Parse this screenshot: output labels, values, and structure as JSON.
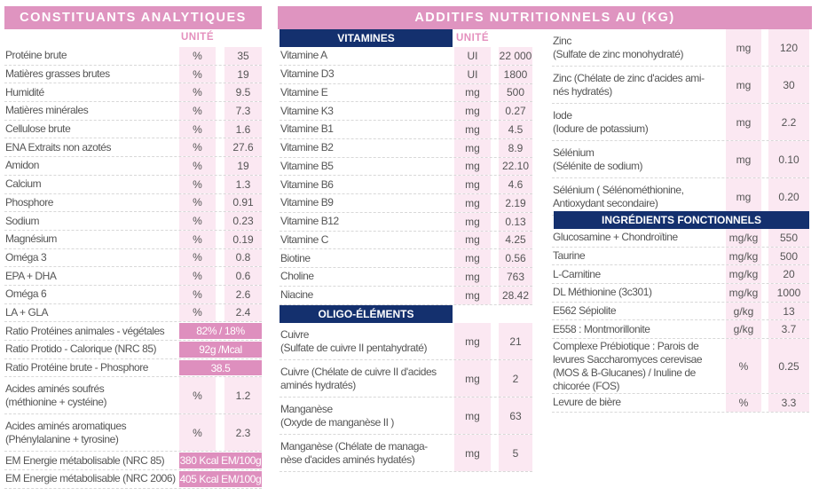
{
  "colors": {
    "pink_header": "#df94c0",
    "navy_header": "#14306e",
    "column_tint": "#fbe8f2",
    "highlight": "#de8fbe",
    "unit_label": "#e48fbd"
  },
  "left": {
    "title": "CONSTITUANTS ANALYTIQUES",
    "unit_header": "UNITÉ",
    "rows": [
      {
        "label": "Protéine brute",
        "unit": "%",
        "value": "35"
      },
      {
        "label": "Matières grasses brutes",
        "unit": "%",
        "value": "19"
      },
      {
        "label": "Humidité",
        "unit": "%",
        "value": "9.5"
      },
      {
        "label": "Matières minérales",
        "unit": "%",
        "value": "7.3"
      },
      {
        "label": "Cellulose brute",
        "unit": "%",
        "value": "1.6"
      },
      {
        "label": "ENA Extraits non azotés",
        "unit": "%",
        "value": "27.6"
      },
      {
        "label": "Amidon",
        "unit": "%",
        "value": "19"
      },
      {
        "label": "Calcium",
        "unit": "%",
        "value": "1.3"
      },
      {
        "label": "Phosphore",
        "unit": "%",
        "value": "0.91"
      },
      {
        "label": "Sodium",
        "unit": "%",
        "value": "0.23"
      },
      {
        "label": "Magnésium",
        "unit": "%",
        "value": "0.19"
      },
      {
        "label": "Oméga 3",
        "unit": "%",
        "value": "0.8"
      },
      {
        "label": "EPA + DHA",
        "unit": "%",
        "value": "0.6"
      },
      {
        "label": "Oméga 6",
        "unit": "%",
        "value": "2.6"
      },
      {
        "label": "LA + GLA",
        "unit": "%",
        "value": "2.4"
      },
      {
        "label": "Ratio Protéines animales - végétales",
        "merged": "82% / 18%"
      },
      {
        "label": "Ratio Protido - Calorique (NRC 85)",
        "merged": "92g /Mcal"
      },
      {
        "label": "Ratio Protéine brute - Phosphore",
        "merged": "38.5"
      },
      {
        "label": "Acides aminés soufrés\n(méthionine + cystéine)",
        "unit": "%",
        "value": "1.2"
      },
      {
        "label": "Acides aminés aromatiques\n(Phénylalanine + tyrosine)",
        "unit": "%",
        "value": "2.3"
      },
      {
        "label": "EM Energie métabolisable  (NRC 85)",
        "merged": "380 Kcal EM/100g"
      },
      {
        "label": "EM Energie métabolisable  (NRC 2006)",
        "merged": "405 Kcal EM/100g"
      }
    ]
  },
  "right_title": "ADDITIFS NUTRITIONNELS AU (KG)",
  "vitamines": {
    "title": "VITAMINES",
    "unit_header": "UNITÉ",
    "rows": [
      {
        "label": "Vitamine A",
        "unit": "UI",
        "value": "22 000"
      },
      {
        "label": "Vitamine D3",
        "unit": "UI",
        "value": "1800"
      },
      {
        "label": "Vitamine E",
        "unit": "mg",
        "value": "500"
      },
      {
        "label": "Vitamine K3",
        "unit": "mg",
        "value": "0.27"
      },
      {
        "label": "Vitamine B1",
        "unit": "mg",
        "value": "4.5"
      },
      {
        "label": "Vitamine B2",
        "unit": "mg",
        "value": "8.9"
      },
      {
        "label": "Vitamine B5",
        "unit": "mg",
        "value": "22.10"
      },
      {
        "label": "Vitamine B6",
        "unit": "mg",
        "value": "4.6"
      },
      {
        "label": "Vitamine B9",
        "unit": "mg",
        "value": "2.19"
      },
      {
        "label": "Vitamine B12",
        "unit": "mg",
        "value": "0.13"
      },
      {
        "label": "Vitamine C",
        "unit": "mg",
        "value": "4.25"
      },
      {
        "label": "Biotine",
        "unit": "mg",
        "value": "0.56"
      },
      {
        "label": "Choline",
        "unit": "mg",
        "value": "763"
      },
      {
        "label": "Niacine",
        "unit": "mg",
        "value": "28.42"
      }
    ]
  },
  "oligo": {
    "title": "OLIGO-ÉLÉMENTS",
    "rows": [
      {
        "label": "Cuivre\n(Sulfate de cuivre II pentahydraté)",
        "unit": "mg",
        "value": "21"
      },
      {
        "label": "Cuivre (Chélate de cuivre II d'acides\naminés hydratés)",
        "unit": "mg",
        "value": "2"
      },
      {
        "label": "Manganèse\n(Oxyde de manganèse II )",
        "unit": "mg",
        "value": "63"
      },
      {
        "label": "Manganèse (Chélate de managa-\nnèse d'acides aminés hydatés)",
        "unit": "mg",
        "value": "5"
      }
    ]
  },
  "oligo_cont": {
    "rows": [
      {
        "label": "Zinc\n(Sulfate de zinc monohydraté)",
        "unit": "mg",
        "value": "120"
      },
      {
        "label": "Zinc (Chélate de zinc d'acides ami-\nnés hydratés)",
        "unit": "mg",
        "value": "30"
      },
      {
        "label": "Iode\n(Iodure de potassium)",
        "unit": "mg",
        "value": "2.2"
      },
      {
        "label": "Sélénium\n(Sélénite de sodium)",
        "unit": "mg",
        "value": "0.10"
      },
      {
        "label": "Sélénium ( Sélénométhionine,\nAntioxydant secondaire)",
        "unit": "mg",
        "value": "0.20"
      }
    ]
  },
  "ingredients": {
    "title": "INGRÉDIENTS FONCTIONNELS",
    "rows": [
      {
        "label": "Glucosamine + Chondroïtine",
        "unit": "mg/kg",
        "value": "550"
      },
      {
        "label": "Taurine",
        "unit": "mg/kg",
        "value": "500"
      },
      {
        "label": "L-Carnitine",
        "unit": "mg/kg",
        "value": "20"
      },
      {
        "label": "DL Méthionine (3c301)",
        "unit": "mg/kg",
        "value": "1000"
      },
      {
        "label": "E562 Sépiolite",
        "unit": "g/kg",
        "value": "13"
      },
      {
        "label": "E558 : Montmorillonite",
        "unit": "g/kg",
        "value": "3.7"
      },
      {
        "label": "Complexe Prébiotique : Parois de\nlevures Saccharomyces cerevisae\n(MOS & B-Glucanes) / Inuline de\nchicorée (FOS)",
        "unit": "%",
        "value": "0.25"
      },
      {
        "label": "Levure de bière",
        "unit": "%",
        "value": "3.3"
      }
    ]
  }
}
